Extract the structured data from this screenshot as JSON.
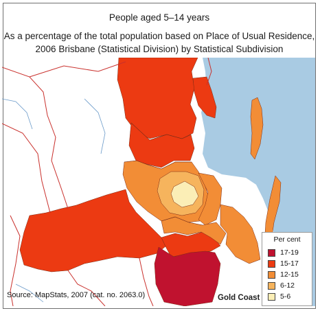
{
  "title": {
    "line1": "People aged 5–14 years",
    "line2": "As a percentage of the total population based on Place of Usual Residence,",
    "line3": "2006 Brisbane (Statistical Division) by Statistical Subdivision"
  },
  "legend": {
    "title": "Per cent",
    "items": [
      {
        "label": "17-19",
        "color": "#c0122f"
      },
      {
        "label": "15-17",
        "color": "#ec3a12"
      },
      {
        "label": "12-15",
        "color": "#f28d36"
      },
      {
        "label": "6-12",
        "color": "#f6b45d"
      },
      {
        "label": "5-6",
        "color": "#fbeeb6"
      }
    ]
  },
  "source": "Source: MapStats, 2007 (cat. no. 2063.0)",
  "place_label": "Gold Coast",
  "colors": {
    "sea": "#a9cbe3",
    "land": "#ffffff",
    "roads": "#c9302c",
    "rivers": "#6a9ac9"
  }
}
